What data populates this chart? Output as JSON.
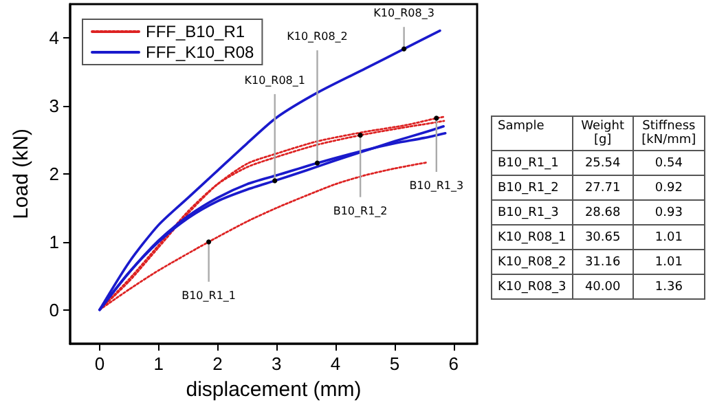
{
  "chart_data": [
    {
      "type": "line",
      "xlabel": "displacement (mm)",
      "ylabel": "Load (kN)",
      "xlim": [
        -0.5,
        6.4
      ],
      "xticks": [
        0,
        1,
        2,
        3,
        4,
        5,
        6
      ],
      "ylim": [
        -0.5,
        4.5
      ],
      "yticks": [
        0,
        1,
        2,
        3,
        4
      ],
      "grid": false,
      "legend": "top left",
      "marker": "none",
      "series": [
        {
          "name": "FFF_B10_R1",
          "color": "#dd2222",
          "line_style": "dotted",
          "x": [
            0,
            0.5,
            1,
            1.85,
            2.5,
            3,
            3.5,
            4,
            4.5,
            5,
            5.55
          ],
          "values": [
            0,
            0.3,
            0.58,
            1.0,
            1.3,
            1.5,
            1.68,
            1.85,
            1.98,
            2.08,
            2.17
          ]
        },
        {
          "color": "#dd2222",
          "line_style": "dotted",
          "x": [
            0,
            0.5,
            1,
            1.5,
            2,
            2.5,
            3,
            3.69,
            4.42,
            5,
            5.84
          ],
          "values": [
            0,
            0.45,
            0.95,
            1.45,
            1.85,
            2.1,
            2.25,
            2.43,
            2.57,
            2.66,
            2.78
          ]
        },
        {
          "color": "#dd2222",
          "line_style": "dotted",
          "x": [
            0,
            0.5,
            1,
            1.5,
            2,
            2.5,
            3,
            3.69,
            4.5,
            5.2,
            5.71,
            5.84
          ],
          "values": [
            0,
            0.42,
            0.92,
            1.42,
            1.85,
            2.15,
            2.3,
            2.48,
            2.62,
            2.72,
            2.82,
            2.84
          ]
        },
        {
          "name": "FFF_K10_R08",
          "color": "#1a1acc",
          "line_style": "solid",
          "x": [
            0,
            0.5,
            1,
            1.5,
            2,
            2.5,
            2.97,
            3.5,
            4,
            4.5,
            5,
            5.5,
            5.83
          ],
          "values": [
            0,
            0.55,
            1.0,
            1.35,
            1.6,
            1.77,
            1.9,
            2.05,
            2.2,
            2.34,
            2.48,
            2.61,
            2.7
          ]
        },
        {
          "color": "#1a1acc",
          "line_style": "solid",
          "x": [
            0,
            0.5,
            1,
            1.5,
            2,
            2.5,
            3,
            3.69,
            4.5,
            5,
            5.5,
            5.86
          ],
          "values": [
            0,
            0.55,
            1.02,
            1.38,
            1.65,
            1.85,
            1.98,
            2.16,
            2.35,
            2.45,
            2.53,
            2.6
          ]
        },
        {
          "color": "#1a1acc",
          "line_style": "solid",
          "x": [
            0,
            0.5,
            1,
            1.5,
            2,
            2.5,
            3,
            3.7,
            4.5,
            5.16,
            5.77
          ],
          "values": [
            0,
            0.7,
            1.25,
            1.65,
            2.05,
            2.45,
            2.83,
            3.2,
            3.55,
            3.84,
            4.11
          ]
        }
      ],
      "annotations": [
        {
          "text": "B10_R1_1",
          "x": 1.85,
          "y": 1.0
        },
        {
          "text": "B10_R1_2",
          "x": 4.42,
          "y": 2.57
        },
        {
          "text": "B10_R1_3",
          "x": 5.71,
          "y": 2.82
        },
        {
          "text": "K10_R08_1",
          "x": 2.97,
          "y": 1.9
        },
        {
          "text": "K10_R08_2",
          "x": 3.69,
          "y": 2.16
        },
        {
          "text": "K10_R08_3",
          "x": 5.16,
          "y": 3.84
        }
      ]
    },
    {
      "type": "other",
      "ylabel": "Sample",
      "categories": [
        "Weight [g]",
        "Stiffness [kN/mm]"
      ],
      "y_categories": [
        "B10_R1_1",
        "B10_R1_2",
        "B10_R1_3",
        "K10_R08_1",
        "K10_R08_2",
        "K10_R08_3"
      ],
      "cell_labels": [
        [
          "25.54",
          "0.54"
        ],
        [
          "27.71",
          "0.92"
        ],
        [
          "28.68",
          "0.93"
        ],
        [
          "30.65",
          "1.01"
        ],
        [
          "31.16",
          "1.01"
        ],
        [
          "40.00",
          "1.36"
        ]
      ],
      "data_labels": true
    }
  ]
}
